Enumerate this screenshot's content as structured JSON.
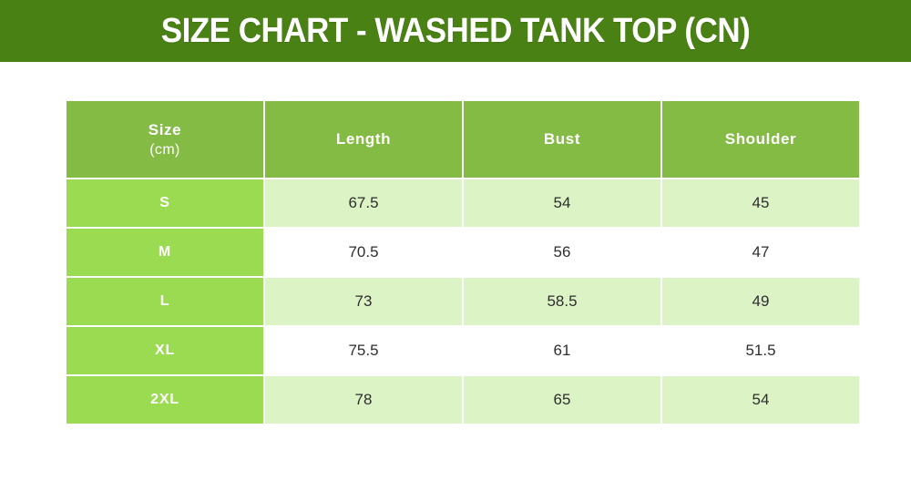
{
  "banner": {
    "title": "SIZE CHART - WASHED TANK TOP (CN)"
  },
  "colors": {
    "banner_bg": "#4a8114",
    "header_bg": "#84bb45",
    "size_column_bg": "#9bdb51",
    "row_tint_bg": "#dcf3c5",
    "row_plain_bg": "#ffffff",
    "header_text": "#ffffff",
    "data_text": "#2e2e2e"
  },
  "table": {
    "header": {
      "size": "Size",
      "unit": "(cm)",
      "length": "Length",
      "bust": "Bust",
      "shoulder": "Shoulder"
    },
    "rows": [
      {
        "size": "S",
        "length": "67.5",
        "bust": "54",
        "shoulder": "45"
      },
      {
        "size": "M",
        "length": "70.5",
        "bust": "56",
        "shoulder": "47"
      },
      {
        "size": "L",
        "length": "73",
        "bust": "58.5",
        "shoulder": "49"
      },
      {
        "size": "XL",
        "length": "75.5",
        "bust": "61",
        "shoulder": "51.5"
      },
      {
        "size": "2XL",
        "length": "78",
        "bust": "65",
        "shoulder": "54"
      }
    ]
  },
  "chart_data": {
    "type": "table",
    "title": "SIZE CHART - WASHED TANK TOP (CN)",
    "unit": "cm",
    "columns": [
      "Size (cm)",
      "Length",
      "Bust",
      "Shoulder"
    ],
    "rows": [
      [
        "S",
        67.5,
        54,
        45
      ],
      [
        "M",
        70.5,
        56,
        47
      ],
      [
        "L",
        73,
        58.5,
        49
      ],
      [
        "XL",
        75.5,
        61,
        51.5
      ],
      [
        "2XL",
        78,
        65,
        54
      ]
    ]
  }
}
